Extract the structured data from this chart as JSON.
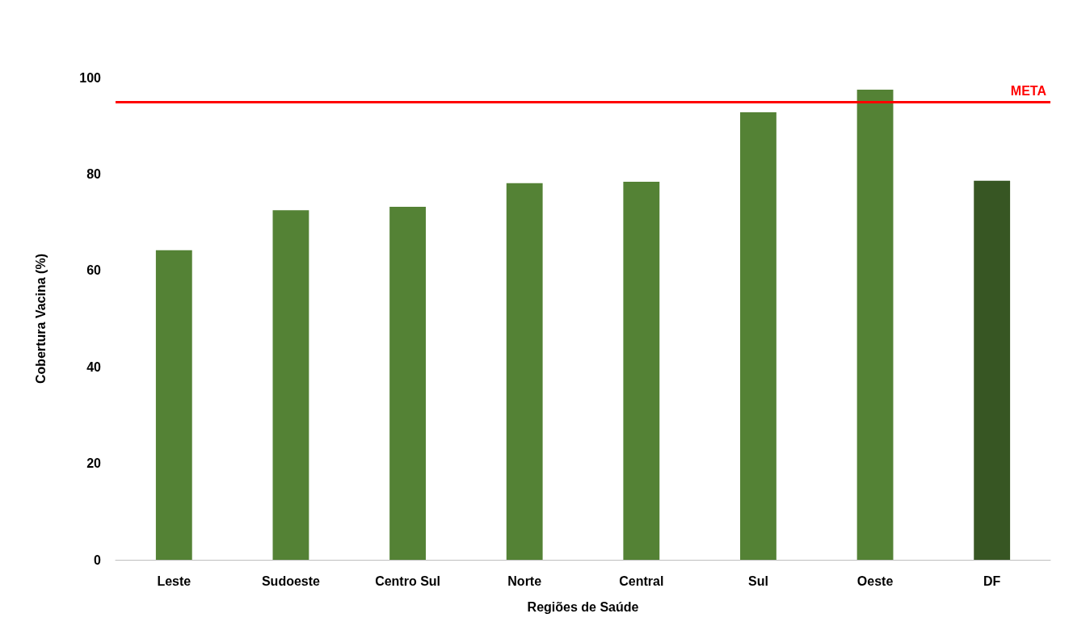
{
  "chart_data": {
    "type": "bar",
    "xlabel": "Regiões de Saúde",
    "ylabel": "Cobertura Vacina (%)",
    "categories": [
      "Leste",
      "Sudoeste",
      "Centro Sul",
      "Norte",
      "Central",
      "Sul",
      "Oeste",
      "DF"
    ],
    "values": [
      64.2,
      72.5,
      73.2,
      78.1,
      78.4,
      92.8,
      97.5,
      78.6
    ],
    "colors": [
      "#548235",
      "#548235",
      "#548235",
      "#548235",
      "#548235",
      "#548235",
      "#548235",
      "#375623"
    ],
    "ylim": [
      0,
      100
    ],
    "yticks": [
      0,
      20,
      40,
      60,
      80,
      100
    ],
    "grid": false,
    "ref_lines": [
      {
        "axis": "y",
        "value": 95,
        "label": "META",
        "color": "#ff0000",
        "line_style": "solid"
      }
    ]
  }
}
